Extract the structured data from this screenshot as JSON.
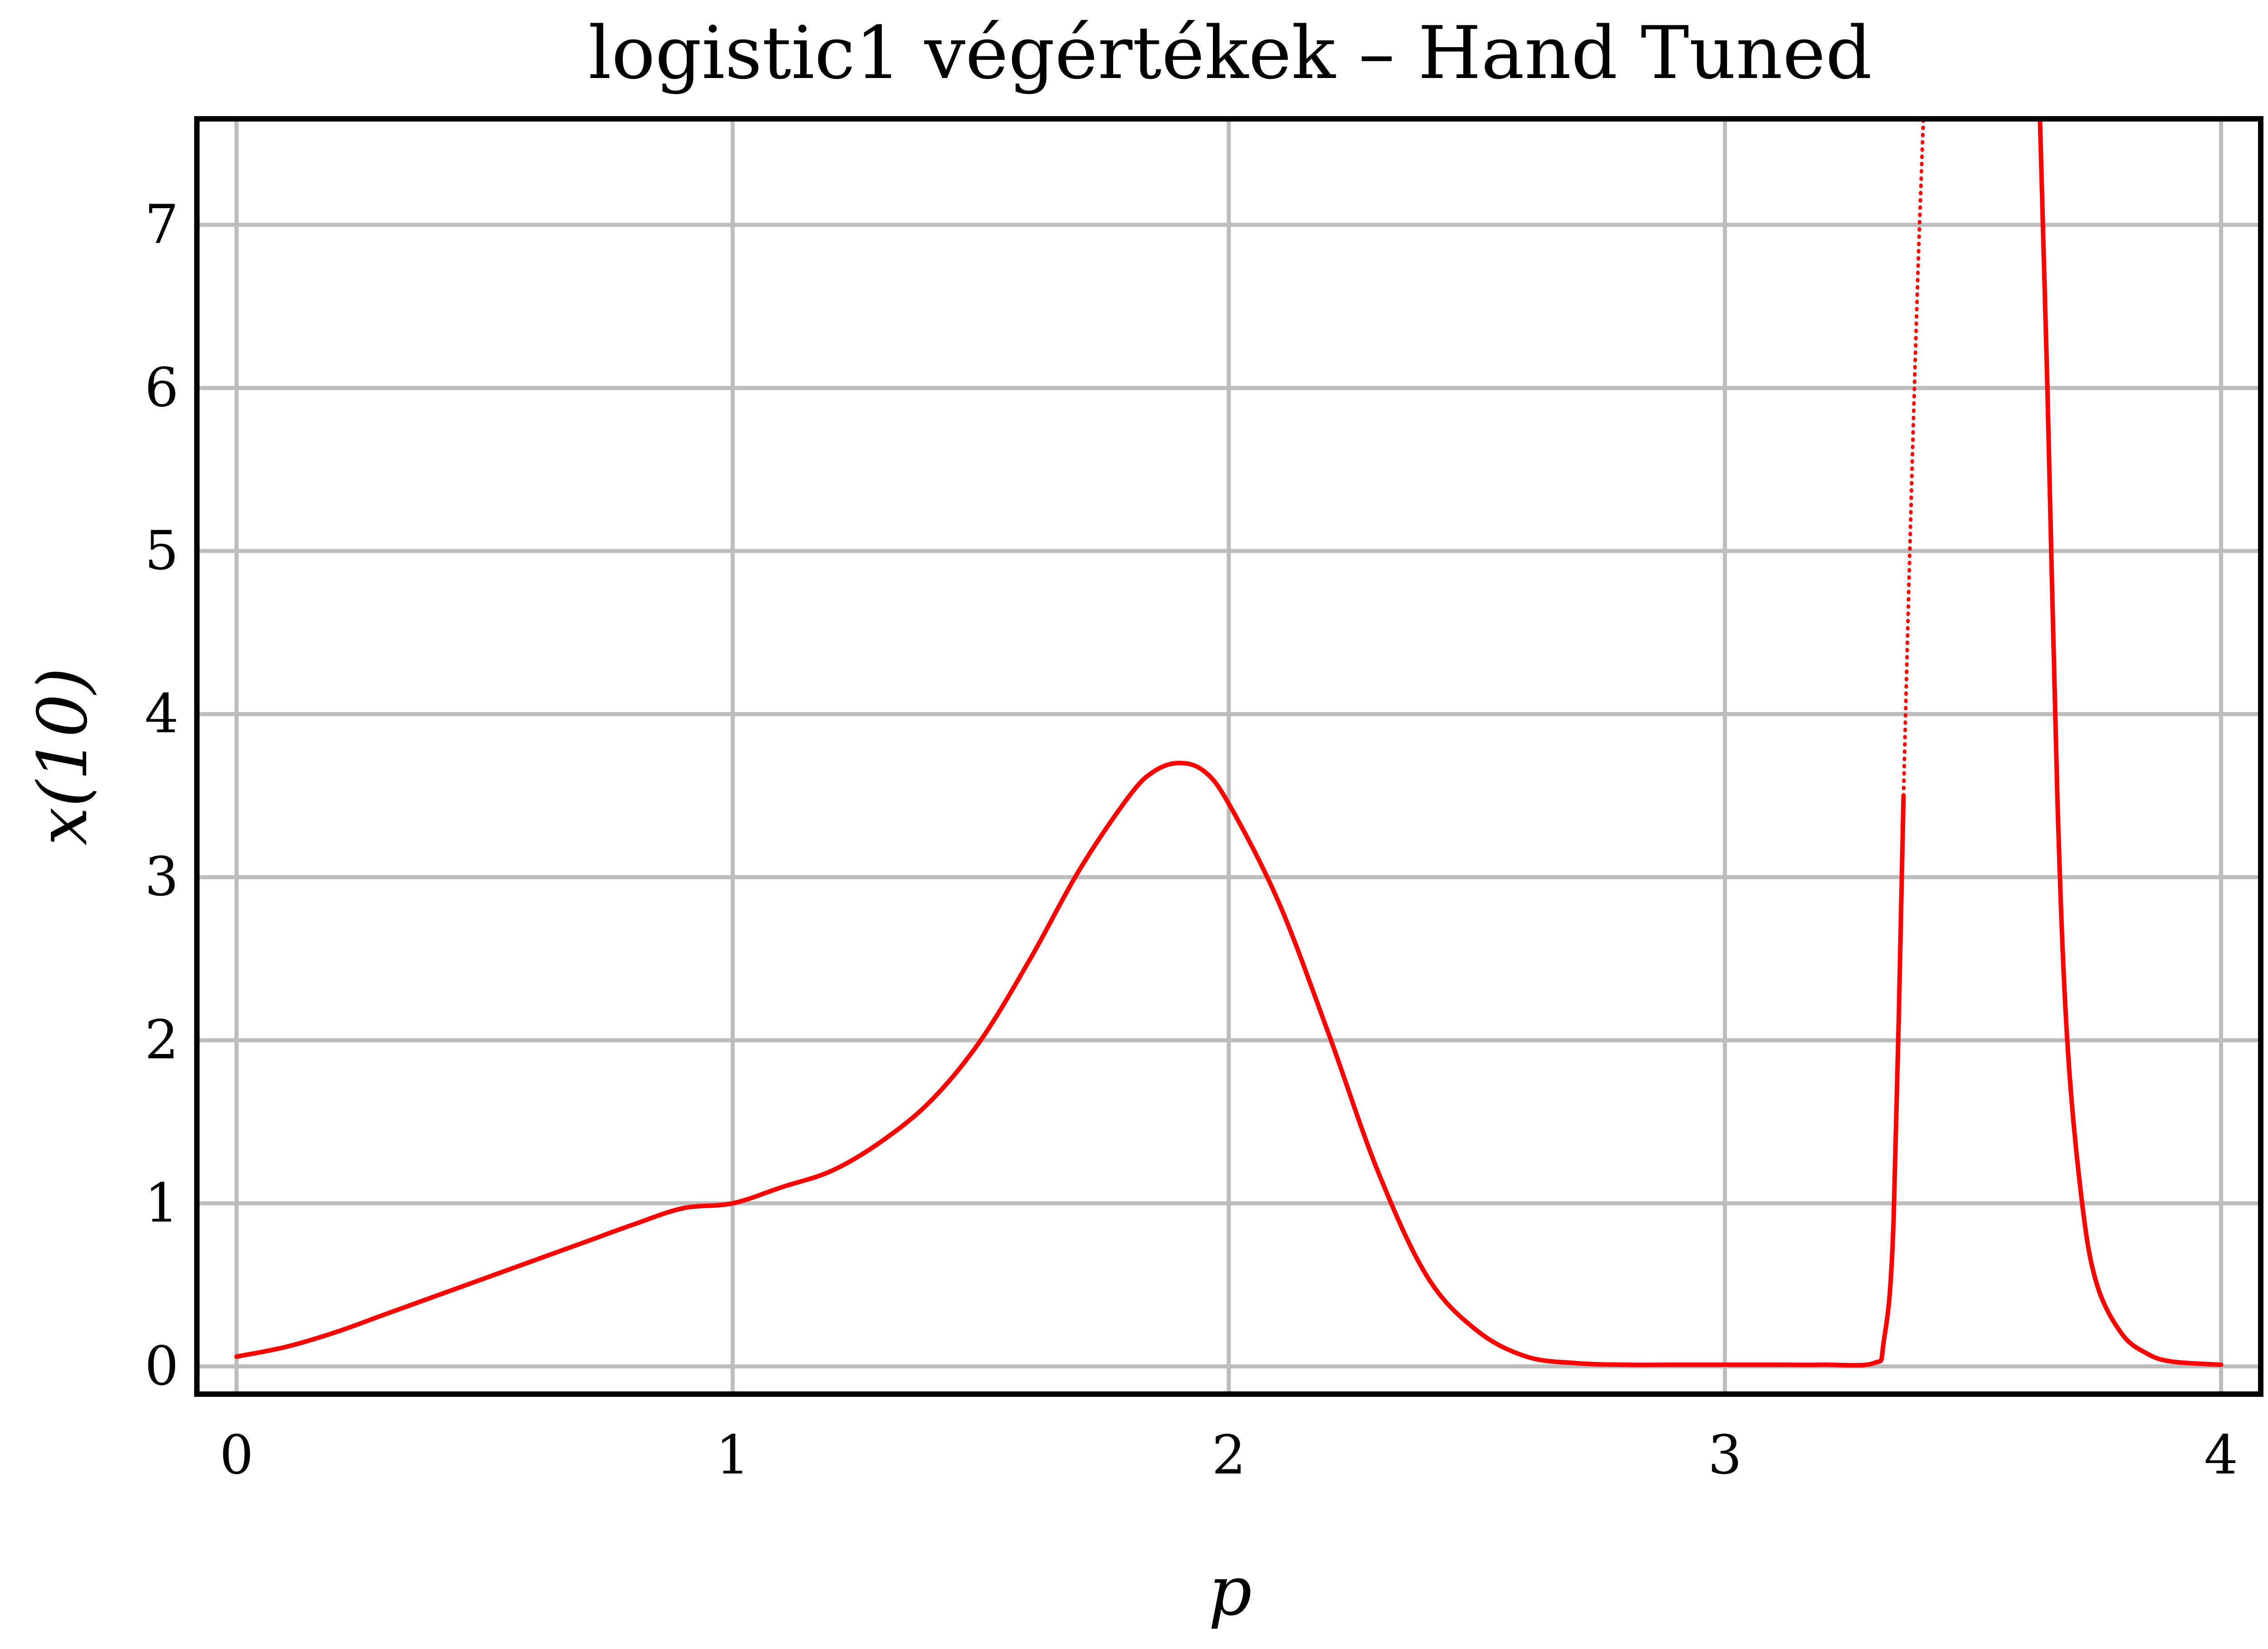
{
  "chart_data": {
    "type": "line",
    "title": "logistic1 végértékek – Hand Tuned",
    "xlabel": "p",
    "ylabel": "x(10)",
    "xlim": [
      -0.08,
      4.08
    ],
    "ylim": [
      -0.17,
      7.65
    ],
    "xticks": [
      0,
      1,
      2,
      3,
      4
    ],
    "yticks": [
      0,
      1,
      2,
      3,
      4,
      5,
      6,
      7
    ],
    "grid": true,
    "legend": "none",
    "colors": {
      "series": "#ff0000",
      "grid": "#bdbdbd",
      "frame": "#000000"
    },
    "series": [
      {
        "style": "solid",
        "x": [
          0,
          0.1,
          0.2,
          0.3,
          0.4,
          0.5,
          0.6,
          0.7,
          0.8,
          0.9,
          1.0,
          1.1,
          1.2,
          1.3,
          1.4,
          1.5,
          1.6,
          1.7,
          1.8,
          1.85,
          1.9,
          1.95,
          2.0,
          2.1,
          2.2,
          2.3,
          2.4,
          2.5,
          2.6,
          2.7,
          2.8,
          2.9,
          3.0,
          3.1,
          3.2,
          3.3,
          3.32,
          3.34,
          3.36
        ],
        "y": [
          0.06,
          0.12,
          0.21,
          0.32,
          0.43,
          0.54,
          0.65,
          0.76,
          0.87,
          0.97,
          1.0,
          1.1,
          1.2,
          1.38,
          1.63,
          2.0,
          2.5,
          3.05,
          3.5,
          3.65,
          3.7,
          3.65,
          3.45,
          2.85,
          2.05,
          1.2,
          0.55,
          0.22,
          0.06,
          0.02,
          0.01,
          0.01,
          0.01,
          0.01,
          0.01,
          0.02,
          0.15,
          0.9,
          3.5
        ]
      },
      {
        "style": "dotted",
        "x": [
          3.36,
          3.37,
          3.38,
          3.39,
          3.4
        ],
        "y": [
          3.5,
          4.7,
          5.8,
          6.8,
          7.65
        ]
      },
      {
        "style": "solid",
        "x": [
          3.635,
          3.65,
          3.67,
          3.69,
          3.72,
          3.75,
          3.8,
          3.85,
          3.9,
          4.0
        ],
        "y": [
          7.65,
          6.0,
          3.5,
          2.0,
          1.0,
          0.5,
          0.2,
          0.08,
          0.03,
          0.01
        ]
      }
    ]
  }
}
